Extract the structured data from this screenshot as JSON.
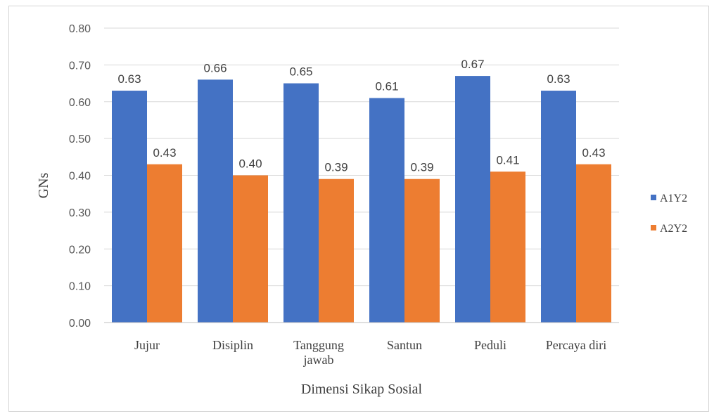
{
  "chart_data": {
    "type": "bar",
    "title": "",
    "xlabel": "Dimensi Sikap Sosial",
    "ylabel": "GNs",
    "ylim": [
      0,
      0.8
    ],
    "yticks": [
      "0.00",
      "0.10",
      "0.20",
      "0.30",
      "0.40",
      "0.50",
      "0.60",
      "0.70",
      "0.80"
    ],
    "categories": [
      "Jujur",
      "Disiplin",
      "Tanggung jawab",
      "Santun",
      "Peduli",
      "Percaya diri"
    ],
    "series": [
      {
        "name": "A1Y2",
        "color": "#4472c4",
        "values": [
          0.63,
          0.66,
          0.65,
          0.61,
          0.67,
          0.63
        ],
        "labels": [
          "0.63",
          "0.66",
          "0.65",
          "0.61",
          "0.67",
          "0.63"
        ]
      },
      {
        "name": "A2Y2",
        "color": "#ed7d31",
        "values": [
          0.43,
          0.4,
          0.39,
          0.39,
          0.41,
          0.43
        ],
        "labels": [
          "0.43",
          "0.40",
          "0.39",
          "0.39",
          "0.41",
          "0.43"
        ]
      }
    ],
    "grid": true,
    "legend": "right"
  }
}
